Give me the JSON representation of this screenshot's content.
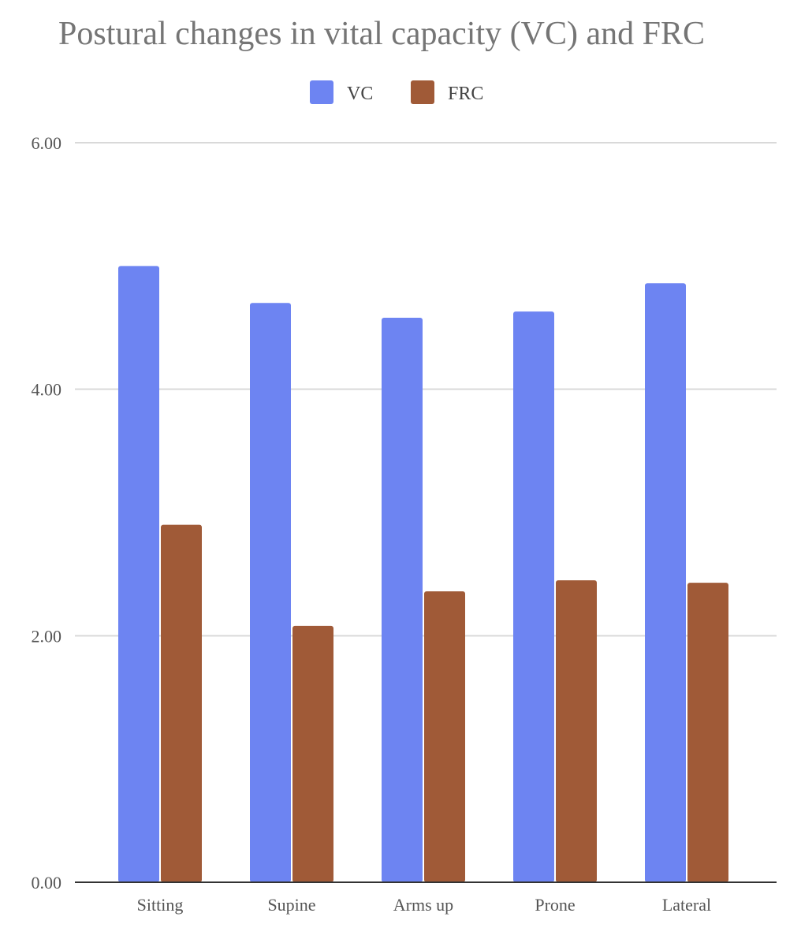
{
  "chart_data": {
    "type": "bar",
    "title": "Postural changes in vital capacity (VC) and FRC",
    "xlabel": "",
    "ylabel": "",
    "categories": [
      "Sitting",
      "Supine",
      "Arms up",
      "Prone",
      "Lateral"
    ],
    "series": [
      {
        "name": "VC",
        "color": "#6d84f2",
        "values": [
          5.0,
          4.7,
          4.58,
          4.63,
          4.86
        ]
      },
      {
        "name": "FRC",
        "color": "#a05a37",
        "values": [
          2.9,
          2.08,
          2.36,
          2.45,
          2.43
        ]
      }
    ],
    "ylim": [
      0,
      6
    ],
    "yticks": [
      "0.00",
      "2.00",
      "4.00",
      "6.00"
    ],
    "grid": true,
    "legend": "top-center"
  }
}
